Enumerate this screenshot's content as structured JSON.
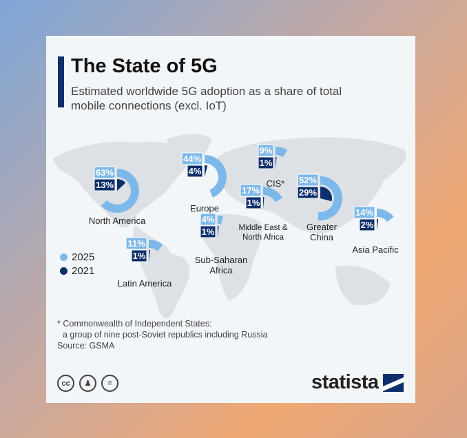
{
  "title": "The State of 5G",
  "subtitle": "Estimated worldwide 5G adoption as a share of total mobile connections (excl. IoT)",
  "chart_data": {
    "type": "radial-gauge-map",
    "title": "The State of 5G",
    "series": [
      {
        "name": "2025",
        "color": "#7cb8ea"
      },
      {
        "name": "2021",
        "color": "#0d2f6b"
      }
    ],
    "regions": [
      {
        "name": "North America",
        "2025": 63,
        "2021": 13
      },
      {
        "name": "Europe",
        "2025": 44,
        "2021": 4
      },
      {
        "name": "CIS*",
        "2025": 9,
        "2021": 1
      },
      {
        "name": "Middle East & North Africa",
        "2025": 17,
        "2021": 1
      },
      {
        "name": "Greater China",
        "2025": 52,
        "2021": 29
      },
      {
        "name": "Asia Pacific",
        "2025": 14,
        "2021": 2
      },
      {
        "name": "Sub-Saharan Africa",
        "2025": 4,
        "2021": 1
      },
      {
        "name": "Latin America",
        "2025": 11,
        "2021": 1
      }
    ]
  },
  "legend": [
    "2025",
    "2021"
  ],
  "footnote": [
    "* Commonwealth of Independent States:",
    "a group of nine post-Soviet republics including Russia"
  ],
  "source": "Source: GSMA",
  "icons": [
    "cc-icon",
    "by-icon",
    "nd-icon"
  ],
  "logo": "statista"
}
